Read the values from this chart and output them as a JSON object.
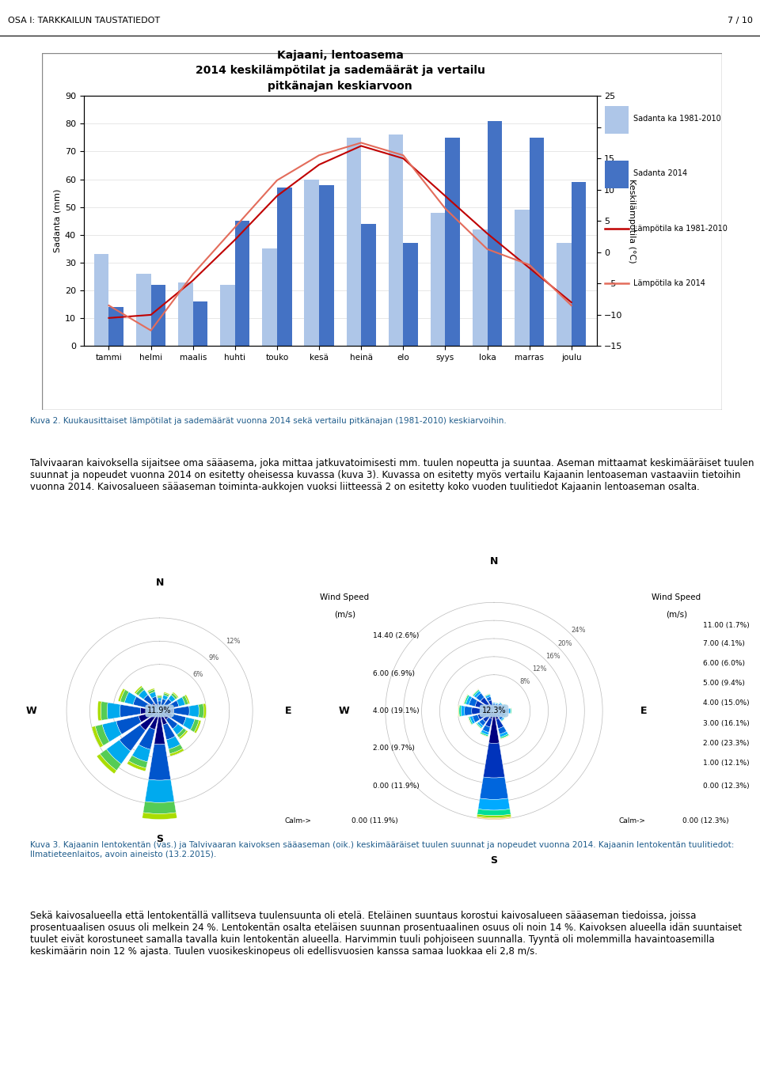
{
  "page_header_left": "OSA I: TARKKAILUN TAUSTATIEDOT",
  "page_header_right": "7 / 10",
  "chart_title1": "Kajaani, lentoasema",
  "chart_title2": "2014 keskilämpötilat ja sademäärät ja vertailu",
  "chart_title3": "pitkänajan keskiarvoon",
  "months": [
    "tammi",
    "helmi",
    "maalis",
    "huhti",
    "touko",
    "kesä",
    "heinä",
    "elo",
    "syys",
    "loka",
    "marras",
    "joulu"
  ],
  "sadanta_ka": [
    33,
    26,
    23,
    22,
    35,
    60,
    75,
    76,
    48,
    42,
    49,
    37
  ],
  "sadanta_2014": [
    14,
    22,
    16,
    45,
    57,
    58,
    44,
    37,
    75,
    81,
    75,
    59
  ],
  "lampotila_ka": [
    -10.5,
    -10.0,
    -4.5,
    2.0,
    9.0,
    14.0,
    17.0,
    15.0,
    9.0,
    3.0,
    -2.5,
    -8.0
  ],
  "lampotila_2014": [
    -8.5,
    -12.5,
    -3.5,
    4.0,
    11.5,
    15.5,
    17.5,
    15.5,
    7.0,
    0.5,
    -2.0,
    -8.5
  ],
  "sadanta_ka_color": "#aec6e8",
  "sadanta_2014_color": "#4472c4",
  "lamp_ka_color": "#c00000",
  "lamp_2014_color": "#e36c5b",
  "ylabel_left": "Sadanta (mm)",
  "ylabel_right": "Keskilämpötila (°C)",
  "ylim_left": [
    0,
    90
  ],
  "ylim_right": [
    -15,
    25
  ],
  "yticks_left": [
    0,
    10,
    20,
    30,
    40,
    50,
    60,
    70,
    80,
    90
  ],
  "yticks_right": [
    -15,
    -10,
    -5,
    0,
    5,
    10,
    15,
    20,
    25
  ],
  "legend_entries": [
    "Sadanta ka 1981-2010",
    "Sadanta 2014",
    "Lämpötila ka 1981-2010",
    "Lämpötila ka 2014"
  ],
  "caption2_text": "Kuva 2. Kuukausittaiset lämpötilat ja sademäärät vuonna 2014 sekä vertailu pitkänajan (1981-2010) keskiarvoihin.",
  "body_text1": "Talvivaaran kaivoksella sijaitsee oma sääasema, joka mittaa jatkuvatoimisesti mm. tuulen nopeutta ja suuntaa. Aseman mittaamat keskimääräiset tuulen suunnat ja nopeudet vuonna 2014 on esitetty oheisessa kuvassa (kuva 3). Kuvassa on esitetty myös vertailu Kajaanin lentoaseman vastaaviin tietoihin vuonna 2014. Kaivosalueen sääaseman toiminta-aukkojen vuoksi liitteessä 2 on esitetty koko vuoden tuulitiedot Kajaanin lentoaseman osalta.",
  "caption3_text": "Kuva 3. Kajaanin lentokentän (vas.) ja Talvivaaran kaivoksen sääaseman (oik.) keskimääräiset tuulen suunnat ja nopeudet vuonna 2014. Kajaanin lentokentän tuulitiedot: Ilmatieteenlaitos, avoin aineisto (13.2.2015).",
  "body_text2": "Sekä kaivosalueella että lentokentällä vallitseva tuulensuunta oli etelä. Eteläinen suuntaus korostui kaivosalueen sääaseman tiedoissa, joissa prosentuaalisen osuus oli melkein 24 %. Lentokentän osalta eteläisen suunnan prosentuaalinen osuus oli noin 14 %. Kaivoksen alueella idän suuntaiset tuulet eivät korostuneet samalla tavalla kuin lentokentän alueella. Harvimmin tuuli pohjoiseen suunnalla. Tyyntä oli molemmilla havaintoasemilla keskimäärin noin 12 % ajasta. Tuulen vuosikeskinopeus oli edellisvuosien kanssa samaa luokkaa eli 2,8 m/s.",
  "windrose1_center_label": "11.9%",
  "windrose2_center_label": "12.3%",
  "speed_labels_1": [
    "0.00 (11.9%)",
    "2.00 (9.7%)",
    "4.00 (19.1%)",
    "6.00 (6.9%)",
    "14.40 (2.6%)"
  ],
  "speed_labels_2": [
    "0.00 (12.3%)",
    "1.00 (12.1%)",
    "2.00 (23.3%)",
    "3.00 (16.1%)",
    "4.00 (15.0%)",
    "5.00 (9.4%)",
    "6.00 (6.0%)",
    "7.00 (4.1%)",
    "11.00 (1.7%)"
  ],
  "windrose_ring_pcts_1": [
    "6%",
    "9%",
    "12%"
  ],
  "windrose_ring_pcts_2": [
    "8%",
    "12%",
    "16%",
    "20%",
    "24%"
  ],
  "airport_totals": [
    0.02,
    0.025,
    0.03,
    0.04,
    0.06,
    0.055,
    0.045,
    0.06,
    0.14,
    0.08,
    0.1,
    0.09,
    0.08,
    0.055,
    0.04,
    0.03
  ],
  "mine_totals": [
    0.02,
    0.02,
    0.025,
    0.03,
    0.04,
    0.03,
    0.03,
    0.065,
    0.24,
    0.06,
    0.05,
    0.06,
    0.08,
    0.07,
    0.06,
    0.04
  ]
}
